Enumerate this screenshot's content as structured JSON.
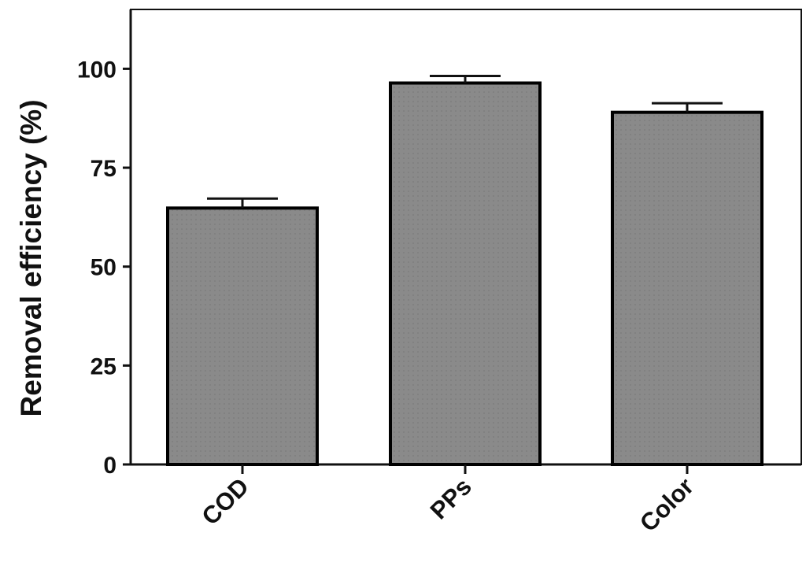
{
  "chart_data": {
    "type": "bar",
    "categories": [
      "COD",
      "PPs",
      "Color"
    ],
    "values": [
      64.8,
      96.4,
      89.0
    ],
    "error": [
      2.4,
      1.8,
      2.3
    ],
    "title": "",
    "xlabel": "",
    "ylabel": "Removal efficiency (%)",
    "ylim": [
      0,
      115
    ],
    "yticks": [
      0,
      25,
      50,
      75,
      100
    ],
    "grid": false,
    "bar_color": "#8a8a8a",
    "edge_color": "#000000"
  }
}
